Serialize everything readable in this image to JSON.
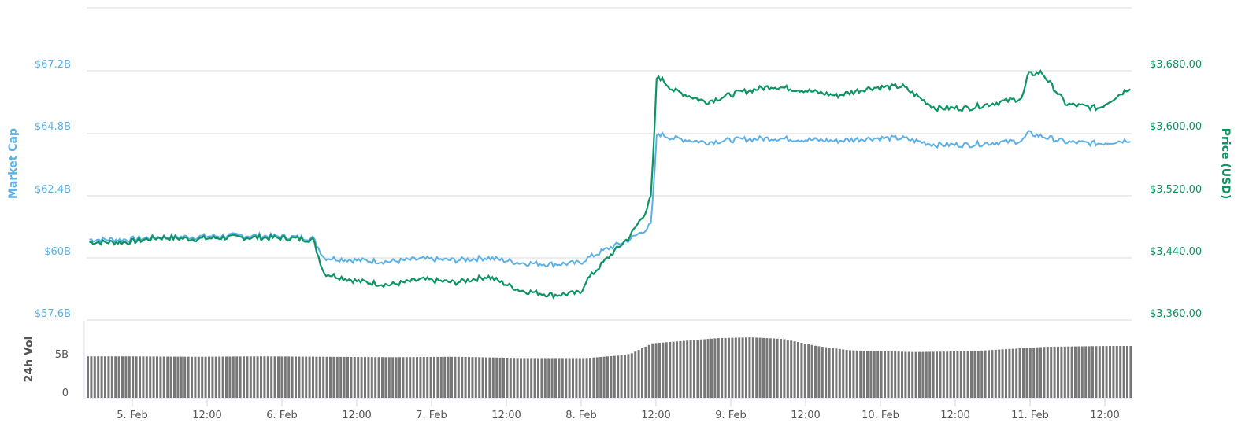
{
  "chart_data": {
    "type": "line",
    "title": "",
    "x_ticks": [
      "5. Feb",
      "12:00",
      "6. Feb",
      "12:00",
      "7. Feb",
      "12:00",
      "8. Feb",
      "12:00",
      "9. Feb",
      "12:00",
      "10. Feb",
      "12:00",
      "11. Feb",
      "12:00"
    ],
    "left_axis": {
      "label": "Market Cap",
      "ticks": [
        "$67.2B",
        "$64.8B",
        "$62.4B",
        "$60B",
        "$57.6B"
      ],
      "range": [
        57.6,
        67.2
      ],
      "color": "#5bb0e6"
    },
    "right_axis": {
      "label": "Price (USD)",
      "ticks": [
        "$3,680.00",
        "$3,600.00",
        "$3,520.00",
        "$3,440.00",
        "$3,360.00"
      ],
      "range": [
        3360,
        3680
      ],
      "color": "#0d9463"
    },
    "volume_axis": {
      "label": "24h Vol",
      "ticks": [
        "5B",
        "0"
      ],
      "color": "#555555"
    },
    "series": [
      {
        "name": "Price (USD)",
        "color": "#0d9463",
        "x_hours": [
          0,
          6,
          12,
          18,
          24,
          30,
          34,
          36,
          42,
          48,
          54,
          60,
          66,
          72,
          78,
          83,
          84,
          88,
          92,
          95,
          96,
          97,
          100,
          106,
          112,
          118,
          124,
          130,
          136,
          142,
          148,
          154,
          160,
          164,
          165,
          172,
          178,
          184,
          167.5
        ],
        "values": [
          3460,
          3466,
          3464,
          3466,
          3466,
          3465,
          3463,
          3420,
          3410,
          3405,
          3412,
          3408,
          3416,
          3398,
          3392,
          3395,
          3410,
          3440,
          3467,
          3500,
          3520,
          3675,
          3655,
          3640,
          3652,
          3660,
          3655,
          3648,
          3658,
          3660,
          3632,
          3632,
          3640,
          3645,
          3675,
          3637,
          3632,
          3660,
          3678
        ]
      },
      {
        "name": "Market Cap",
        "color": "#5bb0e6",
        "x_hours": [
          0,
          6,
          12,
          18,
          24,
          30,
          34,
          36,
          42,
          48,
          54,
          60,
          66,
          72,
          78,
          83,
          84,
          88,
          92,
          95,
          96,
          97,
          100,
          106,
          112,
          118,
          124,
          130,
          136,
          142,
          148,
          154,
          160,
          164,
          165,
          172,
          178,
          184
        ],
        "values_billion": [
          60.7,
          60.8,
          60.8,
          60.85,
          60.85,
          60.8,
          60.75,
          60.0,
          59.9,
          59.85,
          59.95,
          59.9,
          60.0,
          59.8,
          59.75,
          59.8,
          59.95,
          60.35,
          60.7,
          61.1,
          61.3,
          64.8,
          64.6,
          64.45,
          64.55,
          64.6,
          64.55,
          64.5,
          64.6,
          64.6,
          64.35,
          64.35,
          64.45,
          64.5,
          64.8,
          64.45,
          64.4,
          64.55
        ]
      },
      {
        "name": "24h Vol",
        "color": "#666666",
        "x_hours": [
          0,
          12,
          24,
          36,
          48,
          60,
          72,
          84,
          90,
          92,
          96,
          102,
          108,
          114,
          120,
          126,
          132,
          138,
          144,
          150,
          156,
          168,
          180,
          184
        ],
        "values_billion": [
          4.8,
          4.75,
          4.8,
          4.75,
          4.7,
          4.75,
          4.6,
          4.6,
          4.9,
          5.1,
          6.3,
          6.6,
          6.9,
          7.0,
          6.8,
          6.0,
          5.5,
          5.4,
          5.3,
          5.35,
          5.45,
          5.9,
          6.0,
          6.0
        ]
      }
    ],
    "grid": true,
    "legend": "none"
  }
}
